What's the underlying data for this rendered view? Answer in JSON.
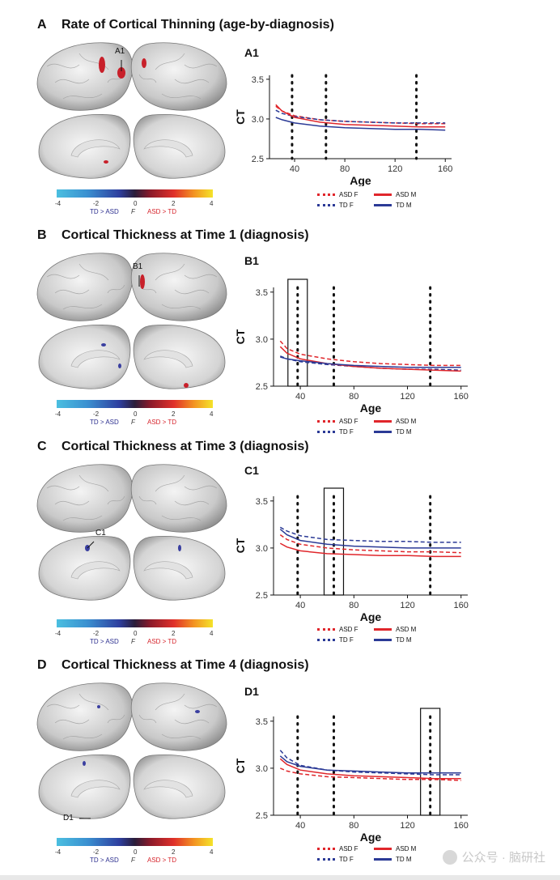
{
  "panels": [
    {
      "letter": "A",
      "title": "Rate of Cortical Thinning (age-by-diagnosis)",
      "sub_label": "A1",
      "brain_marker": "A1",
      "highlight": null
    },
    {
      "letter": "B",
      "title": "Cortical Thickness at Time 1 (diagnosis)",
      "sub_label": "B1",
      "brain_marker": "B1",
      "highlight": 38
    },
    {
      "letter": "C",
      "title": "Cortical Thickness at Time 3 (diagnosis)",
      "sub_label": "C1",
      "brain_marker": "C1",
      "highlight": 65
    },
    {
      "letter": "D",
      "title": "Cortical Thickness at Time 4 (diagnosis)",
      "sub_label": "D1",
      "brain_marker": "D1",
      "highlight": 137
    }
  ],
  "colorbar": {
    "ticks": [
      "-4",
      "-2",
      "0",
      "2",
      "4"
    ],
    "left_caption": "TD > ASD",
    "mid_caption": "F",
    "right_caption": "ASD > TD",
    "colors": {
      "td_gt_asd": "#2c2f8f",
      "asd_gt_td": "#d6222a"
    }
  },
  "legend": {
    "asd_f": "ASD F",
    "asd_m": "ASD M",
    "td_f": "TD F",
    "td_m": "TD M"
  },
  "chart_data": [
    {
      "type": "line",
      "title": "A1",
      "xlabel": "Age",
      "ylabel": "CT",
      "xlim": [
        20,
        165
      ],
      "ylim": [
        2.5,
        3.55
      ],
      "xticks": [
        40,
        80,
        120,
        160
      ],
      "yticks": [
        2.5,
        3.0,
        3.5
      ],
      "vlines": [
        38,
        65,
        137
      ],
      "x": [
        25,
        30,
        40,
        60,
        80,
        100,
        120,
        140,
        160
      ],
      "series": [
        {
          "name": "ASD F",
          "color": "#e0262b",
          "dash": true,
          "values": [
            3.16,
            3.1,
            3.04,
            2.99,
            2.97,
            2.96,
            2.95,
            2.94,
            2.94
          ]
        },
        {
          "name": "TD F",
          "color": "#2b3a96",
          "dash": true,
          "values": [
            3.11,
            3.07,
            3.03,
            2.99,
            2.97,
            2.96,
            2.95,
            2.95,
            2.95
          ]
        },
        {
          "name": "ASD M",
          "color": "#e0262b",
          "dash": false,
          "values": [
            3.18,
            3.1,
            3.02,
            2.96,
            2.93,
            2.92,
            2.91,
            2.9,
            2.9
          ]
        },
        {
          "name": "TD M",
          "color": "#2b3a96",
          "dash": false,
          "values": [
            3.02,
            2.99,
            2.95,
            2.91,
            2.89,
            2.88,
            2.87,
            2.87,
            2.86
          ]
        }
      ]
    },
    {
      "type": "line",
      "title": "B1",
      "xlabel": "Age",
      "ylabel": "CT",
      "xlim": [
        20,
        165
      ],
      "ylim": [
        2.5,
        3.55
      ],
      "xticks": [
        40,
        80,
        120,
        160
      ],
      "yticks": [
        2.5,
        3.0,
        3.5
      ],
      "vlines": [
        38,
        65,
        137
      ],
      "x": [
        25,
        30,
        40,
        60,
        80,
        100,
        120,
        140,
        160
      ],
      "series": [
        {
          "name": "ASD F",
          "color": "#e0262b",
          "dash": true,
          "values": [
            2.98,
            2.9,
            2.84,
            2.79,
            2.76,
            2.74,
            2.73,
            2.72,
            2.72
          ]
        },
        {
          "name": "TD F",
          "color": "#2b3a96",
          "dash": true,
          "values": [
            2.82,
            2.79,
            2.76,
            2.73,
            2.71,
            2.69,
            2.68,
            2.68,
            2.67
          ]
        },
        {
          "name": "ASD M",
          "color": "#e0262b",
          "dash": false,
          "values": [
            2.92,
            2.85,
            2.79,
            2.74,
            2.71,
            2.69,
            2.68,
            2.67,
            2.66
          ]
        },
        {
          "name": "TD M",
          "color": "#2b3a96",
          "dash": false,
          "values": [
            2.81,
            2.79,
            2.77,
            2.74,
            2.72,
            2.71,
            2.7,
            2.7,
            2.7
          ]
        }
      ]
    },
    {
      "type": "line",
      "title": "C1",
      "xlabel": "Age",
      "ylabel": "CT",
      "xlim": [
        20,
        165
      ],
      "ylim": [
        2.5,
        3.55
      ],
      "xticks": [
        40,
        80,
        120,
        160
      ],
      "yticks": [
        2.5,
        3.0,
        3.5
      ],
      "vlines": [
        38,
        65,
        137
      ],
      "x": [
        25,
        30,
        40,
        60,
        80,
        100,
        120,
        140,
        160
      ],
      "series": [
        {
          "name": "ASD F",
          "color": "#e0262b",
          "dash": true,
          "values": [
            3.14,
            3.09,
            3.04,
            3.0,
            2.98,
            2.97,
            2.96,
            2.96,
            2.95
          ]
        },
        {
          "name": "TD F",
          "color": "#2b3a96",
          "dash": true,
          "values": [
            3.22,
            3.18,
            3.13,
            3.09,
            3.08,
            3.07,
            3.07,
            3.06,
            3.06
          ]
        },
        {
          "name": "ASD M",
          "color": "#e0262b",
          "dash": false,
          "values": [
            3.05,
            3.01,
            2.97,
            2.94,
            2.93,
            2.92,
            2.92,
            2.91,
            2.91
          ]
        },
        {
          "name": "TD M",
          "color": "#2b3a96",
          "dash": false,
          "values": [
            3.2,
            3.14,
            3.08,
            3.04,
            3.02,
            3.01,
            3.0,
            3.0,
            3.0
          ]
        }
      ]
    },
    {
      "type": "line",
      "title": "D1",
      "xlabel": "Age",
      "ylabel": "CT",
      "xlim": [
        20,
        165
      ],
      "ylim": [
        2.5,
        3.55
      ],
      "xticks": [
        40,
        80,
        120,
        160
      ],
      "yticks": [
        2.5,
        3.0,
        3.5
      ],
      "vlines": [
        38,
        65,
        137
      ],
      "x": [
        25,
        30,
        40,
        60,
        80,
        100,
        120,
        140,
        160
      ],
      "series": [
        {
          "name": "ASD F",
          "color": "#e0262b",
          "dash": true,
          "values": [
            3.0,
            2.97,
            2.94,
            2.91,
            2.9,
            2.89,
            2.88,
            2.88,
            2.87
          ]
        },
        {
          "name": "TD F",
          "color": "#2b3a96",
          "dash": true,
          "values": [
            3.19,
            3.11,
            3.03,
            2.98,
            2.96,
            2.95,
            2.94,
            2.93,
            2.93
          ]
        },
        {
          "name": "ASD M",
          "color": "#e0262b",
          "dash": false,
          "values": [
            3.1,
            3.04,
            2.98,
            2.94,
            2.92,
            2.91,
            2.9,
            2.89,
            2.89
          ]
        },
        {
          "name": "TD M",
          "color": "#2b3a96",
          "dash": false,
          "values": [
            3.13,
            3.07,
            3.02,
            2.98,
            2.97,
            2.96,
            2.95,
            2.95,
            2.95
          ]
        }
      ]
    }
  ],
  "watermark": "公众号 · 脑研社"
}
